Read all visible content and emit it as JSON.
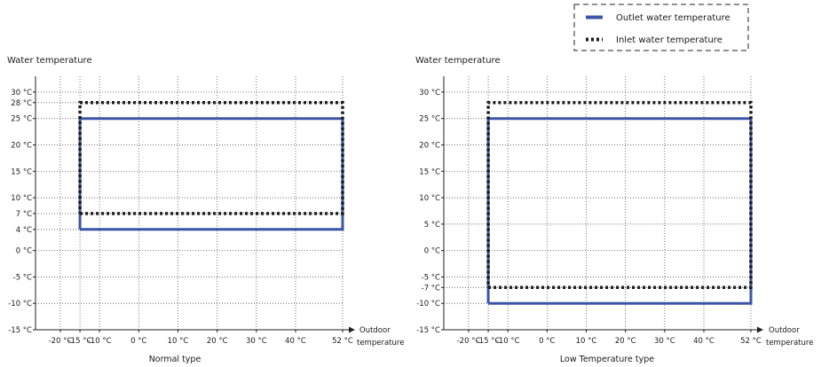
{
  "legend": {
    "outlet_label": "Outlet water temperature",
    "inlet_label": "Inlet water temperature"
  },
  "colors": {
    "outlet": "#3a55a6",
    "inlet": "#1a1a1a",
    "grid": "#555555"
  },
  "chart_data": [
    {
      "type": "line",
      "title": "Normal type",
      "ylabel": "Water temperature",
      "xlabel": "Outdoor temperature",
      "xlabel_lines": [
        "Outdoor",
        "temperature"
      ],
      "x_ticks": [
        -20,
        -15,
        -10,
        0,
        10,
        20,
        30,
        40,
        52
      ],
      "x_tick_labels": [
        "-20 °C",
        "-15 °C",
        "-10 °C",
        "0 °C",
        "10 °C",
        "20 °C",
        "30 °C",
        "40 °C",
        "52 °C"
      ],
      "y_ticks": [
        -15,
        -10,
        -5,
        0,
        4,
        7,
        10,
        15,
        20,
        25,
        28,
        30
      ],
      "y_tick_labels": [
        "-15 °C",
        "-10 °C",
        "-5 °C",
        "0 °C",
        "4 °C",
        "7 °C",
        "10 °C",
        "15 °C",
        "20 °C",
        "25 °C",
        "28 °C",
        "30 °C"
      ],
      "xlim": [
        -25,
        52
      ],
      "ylim": [
        -15,
        33
      ],
      "grid": true,
      "series": [
        {
          "name": "Outlet water temperature",
          "x": [
            -15,
            52,
            52,
            -15,
            -15
          ],
          "y": [
            4,
            4,
            25,
            25,
            4
          ]
        },
        {
          "name": "Inlet water temperature",
          "x": [
            -15,
            52,
            52,
            -15,
            -15
          ],
          "y": [
            7,
            7,
            28,
            28,
            7
          ]
        }
      ]
    },
    {
      "type": "line",
      "title": "Low Temperature type",
      "ylabel": "Water temperature",
      "xlabel": "Outdoor temperature",
      "xlabel_lines": [
        "Outdoor",
        "temperature"
      ],
      "x_ticks": [
        -20,
        -15,
        -10,
        0,
        10,
        20,
        30,
        40,
        52
      ],
      "x_tick_labels": [
        "-20 °C",
        "-15 °C",
        "-10 °C",
        "0 °C",
        "10 °C",
        "20 °C",
        "30 °C",
        "40 °C",
        "52 °C"
      ],
      "y_ticks": [
        -15,
        -10,
        -7,
        -5,
        0,
        5,
        10,
        15,
        20,
        25,
        30
      ],
      "y_tick_labels": [
        "-15 °C",
        "-10 °C",
        "-7 °C",
        "-5 °C",
        "0 °C",
        "5 °C",
        "10 °C",
        "15 °C",
        "20 °C",
        "25 °C",
        "30 °C"
      ],
      "xlim": [
        -25,
        52
      ],
      "ylim": [
        -15,
        33
      ],
      "grid": true,
      "series": [
        {
          "name": "Outlet water temperature",
          "x": [
            -15,
            52,
            52,
            -15,
            -15
          ],
          "y": [
            -10,
            -10,
            25,
            25,
            -10
          ]
        },
        {
          "name": "Inlet water temperature",
          "x": [
            -15,
            52,
            52,
            -15,
            -15
          ],
          "y": [
            -7,
            -7,
            28,
            28,
            -7
          ]
        }
      ]
    }
  ]
}
